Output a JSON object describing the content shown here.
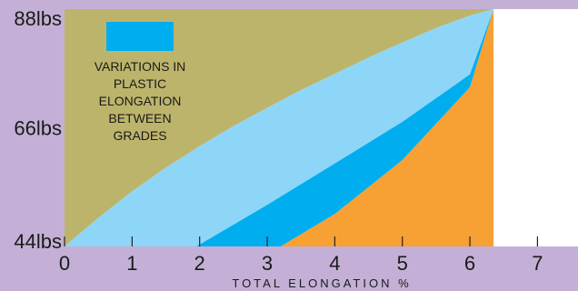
{
  "chart_data": {
    "type": "area",
    "xlabel": "TOTAL ELONGATION %",
    "x_ticks": [
      "0",
      "1",
      "2",
      "3",
      "4",
      "5",
      "6",
      "7"
    ],
    "xlim": [
      0,
      7.6
    ],
    "y_ticks": [
      "44lbs",
      "66lbs",
      "88lbs"
    ],
    "y_values": [
      44,
      66,
      88
    ],
    "ylim": [
      44,
      88
    ],
    "end_point": {
      "x": 6.35,
      "y": 88
    },
    "regions": [
      {
        "fill": "#bdb46b"
      },
      {
        "fill": "#8ed6f7"
      },
      {
        "fill": "#00aeef"
      },
      {
        "fill": "#f7a034"
      }
    ],
    "boundaries": [
      {
        "points": [
          [
            0,
            44
          ],
          [
            0.5,
            49.3
          ],
          [
            1,
            54.2
          ],
          [
            1.5,
            58.6
          ],
          [
            2,
            62.6
          ],
          [
            2.5,
            66.3
          ],
          [
            3,
            69.7
          ],
          [
            3.5,
            73.0
          ],
          [
            4,
            76.0
          ],
          [
            4.5,
            79.0
          ],
          [
            5,
            81.8
          ],
          [
            5.5,
            84.5
          ],
          [
            6,
            86.8
          ],
          [
            6.35,
            88
          ]
        ]
      },
      {
        "points": [
          [
            1.95,
            44
          ],
          [
            3,
            51.7
          ],
          [
            4,
            59.4
          ],
          [
            5,
            67.1
          ],
          [
            6,
            75.9
          ],
          [
            6.35,
            88
          ]
        ]
      },
      {
        "points": [
          [
            3.2,
            44
          ],
          [
            4,
            50.0
          ],
          [
            5,
            60.0
          ],
          [
            6,
            73.5
          ],
          [
            6.35,
            88
          ]
        ]
      }
    ],
    "legend": {
      "swatch_color": "#00aeef",
      "lines": [
        "VARIATIONS IN",
        "PLASTIC",
        "ELONGATION",
        "BETWEEN",
        "GRADES"
      ]
    }
  }
}
